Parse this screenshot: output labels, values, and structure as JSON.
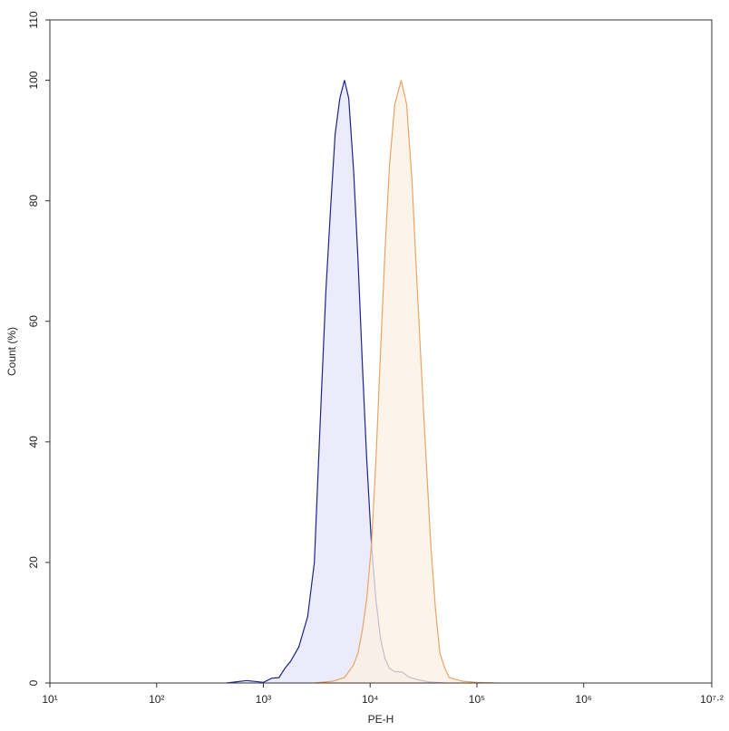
{
  "chart_data": {
    "type": "area",
    "x_label": "PE-H",
    "y_label": "Count (%)",
    "xscale": "log",
    "xlim": [
      10,
      15848931.92
    ],
    "ylim": [
      0,
      110
    ],
    "xticks": [
      {
        "value": 10,
        "label": "10¹"
      },
      {
        "value": 100,
        "label": "10²"
      },
      {
        "value": 1000,
        "label": "10³"
      },
      {
        "value": 10000,
        "label": "10⁴"
      },
      {
        "value": 100000,
        "label": "10⁵"
      },
      {
        "value": 1000000,
        "label": "10⁶"
      },
      {
        "value": 15848931.92,
        "label": "10⁷·²"
      }
    ],
    "yticks": [
      0,
      20,
      40,
      60,
      80,
      100,
      110
    ],
    "grid": false,
    "series": [
      {
        "line_color": "#1f2585",
        "color": "#e4e4fb",
        "x": [
          450,
          700,
          1000,
          1200,
          1400,
          1600,
          1800,
          2150,
          2600,
          3000,
          3200,
          3500,
          3850,
          4300,
          4700,
          5200,
          5750,
          6300,
          7000,
          7700,
          8500,
          9300,
          10300,
          11300,
          12500,
          13800,
          15200,
          17000,
          20000,
          23000,
          27000,
          35000,
          50000
        ],
        "values": [
          0,
          0.4,
          0.1,
          0.8,
          0.9,
          2.5,
          3.6,
          6,
          11,
          20,
          32,
          48,
          65,
          80,
          91,
          97,
          100,
          97,
          85,
          70,
          52,
          37,
          23,
          14,
          7.4,
          4,
          2.4,
          1.9,
          1.8,
          1.0,
          0.6,
          0.2,
          0
        ]
      },
      {
        "line_color": "#e9a467",
        "color": "#fcf0e2",
        "x": [
          3000,
          4500,
          5750,
          7000,
          7700,
          8500,
          9300,
          10300,
          11400,
          12600,
          13800,
          15200,
          17000,
          19500,
          22000,
          24700,
          27000,
          30000,
          33500,
          37000,
          41000,
          45000,
          50000,
          55000,
          73000,
          100000,
          150000
        ],
        "values": [
          0,
          0.3,
          0.9,
          3,
          5,
          9,
          14,
          23,
          38,
          56,
          72,
          86,
          96,
          100,
          96,
          83,
          69,
          53,
          37,
          23,
          12,
          5,
          2.5,
          0.9,
          0.3,
          0.1,
          0
        ]
      }
    ]
  }
}
